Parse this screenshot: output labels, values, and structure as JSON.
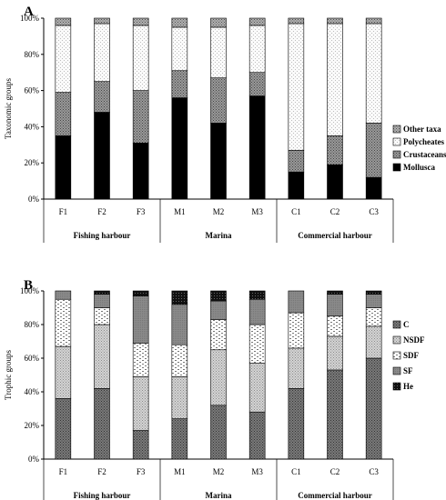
{
  "chart_data": [
    {
      "type": "bar",
      "stacked": true,
      "panel_label": "A",
      "ylabel": "Taxonomic groups",
      "ylim": [
        0,
        100
      ],
      "yticks": [
        "0%",
        "20%",
        "40%",
        "60%",
        "80%",
        "100%"
      ],
      "categories": [
        "F1",
        "F2",
        "F3",
        "M1",
        "M2",
        "M3",
        "C1",
        "C2",
        "C3"
      ],
      "groups": [
        {
          "label": "Fishing harbour",
          "members": [
            "F1",
            "F2",
            "F3"
          ]
        },
        {
          "label": "Marina",
          "members": [
            "M1",
            "M2",
            "M3"
          ]
        },
        {
          "label": "Commercial harbour",
          "members": [
            "C1",
            "C2",
            "C3"
          ]
        }
      ],
      "legend_position": "right",
      "series": [
        {
          "name": "Mollusca",
          "values": [
            35,
            48,
            31,
            56,
            42,
            57,
            15,
            19,
            12
          ]
        },
        {
          "name": "Crustaceans",
          "values": [
            24,
            17,
            29,
            15,
            25,
            13,
            12,
            16,
            30
          ]
        },
        {
          "name": "Polycheates",
          "values": [
            37,
            32,
            36,
            24,
            28,
            26,
            70,
            62,
            55
          ]
        },
        {
          "name": "Other taxa",
          "values": [
            4,
            3,
            4,
            5,
            5,
            4,
            3,
            3,
            3
          ]
        }
      ],
      "legend_order": [
        "Other taxa",
        "Polycheates",
        "Crustaceans",
        "Mollusca"
      ]
    },
    {
      "type": "bar",
      "stacked": true,
      "panel_label": "B",
      "ylabel": "Trophic groups",
      "ylim": [
        0,
        100
      ],
      "yticks": [
        "0%",
        "20%",
        "40%",
        "60%",
        "80%",
        "100%"
      ],
      "categories": [
        "F1",
        "F2",
        "F3",
        "M1",
        "M2",
        "M3",
        "C1",
        "C2",
        "C3"
      ],
      "groups": [
        {
          "label": "Fishing harbour",
          "members": [
            "F1",
            "F2",
            "F3"
          ]
        },
        {
          "label": "Marina",
          "members": [
            "M1",
            "M2",
            "M3"
          ]
        },
        {
          "label": "Commercial harbour",
          "members": [
            "C1",
            "C2",
            "C3"
          ]
        }
      ],
      "legend_position": "right",
      "series": [
        {
          "name": "C",
          "values": [
            36,
            42,
            17,
            24,
            32,
            28,
            42,
            53,
            60
          ]
        },
        {
          "name": "NSDF",
          "values": [
            31,
            38,
            32,
            25,
            33,
            29,
            24,
            20,
            19
          ]
        },
        {
          "name": "SDF",
          "values": [
            28,
            10,
            20,
            19,
            18,
            23,
            21,
            12,
            11
          ]
        },
        {
          "name": "SF",
          "values": [
            5,
            8,
            28,
            24,
            11,
            15,
            13,
            13,
            8
          ]
        },
        {
          "name": "He",
          "values": [
            0,
            2,
            3,
            8,
            6,
            5,
            0,
            2,
            2
          ]
        }
      ],
      "legend_order": [
        "C",
        "NSDF",
        "SDF",
        "SF",
        "He"
      ]
    }
  ],
  "styles": {
    "A": {
      "Mollusca": {
        "pattern": "solid-black"
      },
      "Crustaceans": {
        "pattern": "dense-dots",
        "color": "#888888"
      },
      "Polycheates": {
        "pattern": "light-dots",
        "color": "#f2f2f2"
      },
      "Other taxa": {
        "pattern": "dense-dots",
        "color": "#999999"
      }
    },
    "B": {
      "C": {
        "pattern": "dark-dots",
        "color": "#6e6e6e"
      },
      "NSDF": {
        "pattern": "light-gray-dots",
        "color": "#c8c8c8"
      },
      "SDF": {
        "pattern": "white-dashes",
        "color": "#ffffff"
      },
      "SF": {
        "pattern": "medium-gray",
        "color": "#8c8c8c"
      },
      "He": {
        "pattern": "black-dots",
        "color": "#111111"
      }
    }
  }
}
